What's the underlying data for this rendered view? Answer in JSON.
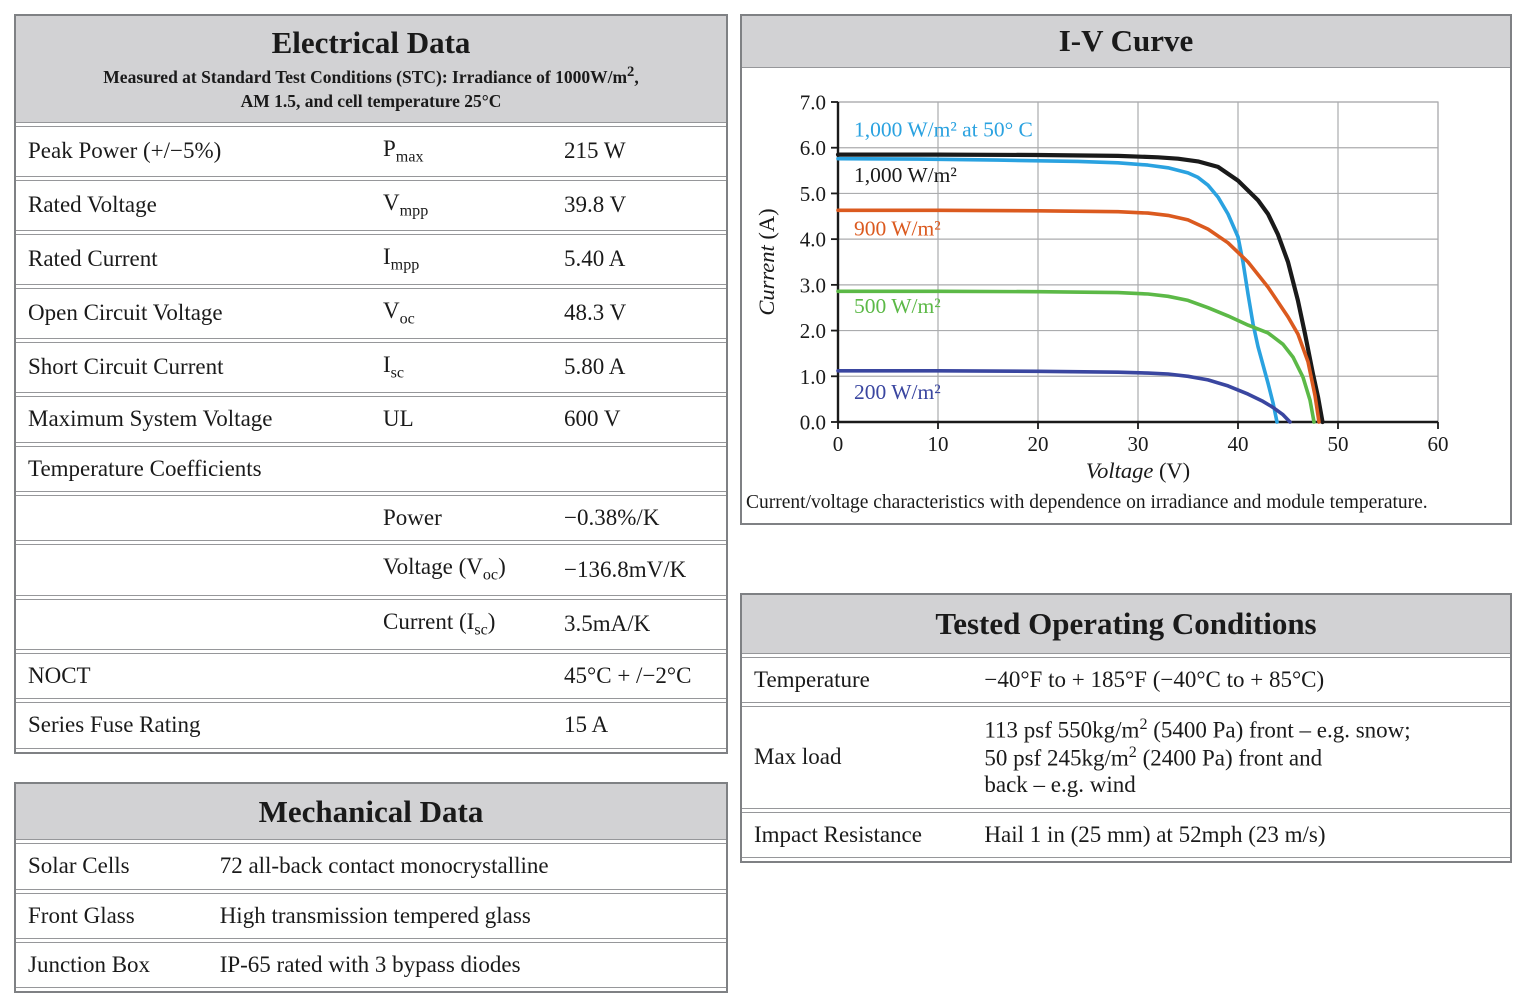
{
  "electrical": {
    "title": "Electrical Data",
    "subtitle_line1": "Measured at Standard Test Conditions (STC): Irradiance of 1000W/m<sup>2</sup>,",
    "subtitle_line2": "AM 1.5, and cell temperature 25°C",
    "rows": [
      {
        "label": "Peak Power (+/−5%)",
        "symbol": "P<sub>max</sub>",
        "value": "215 W"
      },
      {
        "label": "Rated Voltage",
        "symbol": "V<sub>mpp</sub>",
        "value": "39.8 V"
      },
      {
        "label": "Rated Current",
        "symbol": "I<sub>mpp</sub>",
        "value": "5.40 A"
      },
      {
        "label": "Open Circuit Voltage",
        "symbol": "V<sub>oc</sub>",
        "value": "48.3 V"
      },
      {
        "label": "Short Circuit Current",
        "symbol": "I<sub>sc</sub>",
        "value": "5.80 A"
      },
      {
        "label": "Maximum System Voltage",
        "symbol": "UL",
        "value": "600 V"
      },
      {
        "label": "Temperature Coefficients",
        "symbol": "",
        "value": ""
      },
      {
        "label": "",
        "symbol": "Power",
        "value": "−0.38%/K"
      },
      {
        "label": "",
        "symbol": "Voltage (V<sub>oc</sub>)",
        "value": "−136.8mV/K"
      },
      {
        "label": "",
        "symbol": "Current (I<sub>sc</sub>)",
        "value": "3.5mA/K"
      },
      {
        "label": "NOCT",
        "symbol": "",
        "value": "45°C + /−2°C"
      },
      {
        "label": "Series Fuse Rating",
        "symbol": "",
        "value": "15 A"
      }
    ]
  },
  "mechanical": {
    "title": "Mechanical Data",
    "rows": [
      {
        "label": "Solar Cells",
        "value": "72 all-back contact monocrystalline"
      },
      {
        "label": "Front Glass",
        "value": "High transmission tempered glass"
      },
      {
        "label": "Junction Box",
        "value": "IP-65 rated with 3 bypass diodes"
      }
    ]
  },
  "tested": {
    "title": "Tested Operating Conditions",
    "rows": [
      {
        "label": "Temperature",
        "value": "−40°F to + 185°F (−40°C to + 85°C)"
      },
      {
        "label": "Max load",
        "value": "113 psf 550kg/m<sup>2</sup> (5400 Pa) front – e.g. snow;<br>50 psf 245kg/m<sup>2</sup> (2400 Pa) front and<br>back – e.g. wind"
      },
      {
        "label": "Impact Resistance",
        "value": "Hail 1 in (25 mm) at 52mph (23 m/s)"
      }
    ]
  },
  "chart_data": {
    "type": "line",
    "title": "I-V Curve",
    "caption": "Current/voltage characteristics with dependence on irradiance and module temperature.",
    "xlabel": "Voltage",
    "xunit": "(V)",
    "ylabel": "Current",
    "yunit": "(A)",
    "xlim": [
      0,
      60
    ],
    "ylim": [
      0,
      7
    ],
    "xticks": [
      0,
      10,
      20,
      30,
      40,
      50,
      60
    ],
    "yticks": [
      0,
      1,
      2,
      3,
      4,
      5,
      6,
      7
    ],
    "grid": true,
    "grid_color": "#abacae",
    "axis_color": "#1a1a1a",
    "legend_position": "inline-left",
    "series": [
      {
        "name": "1,000 W/m²",
        "irradiance_w_m2": 1000,
        "color": "#1a1a1a",
        "width": 4.2,
        "label_pos": [
          1.6,
          5.25
        ],
        "points": [
          [
            0,
            5.85
          ],
          [
            10,
            5.85
          ],
          [
            20,
            5.84
          ],
          [
            28,
            5.82
          ],
          [
            32,
            5.79
          ],
          [
            34,
            5.76
          ],
          [
            36,
            5.7
          ],
          [
            38,
            5.58
          ],
          [
            40,
            5.28
          ],
          [
            42,
            4.85
          ],
          [
            43,
            4.55
          ],
          [
            44,
            4.1
          ],
          [
            45,
            3.5
          ],
          [
            46,
            2.65
          ],
          [
            46.7,
            1.93
          ],
          [
            47.5,
            1.05
          ],
          [
            48,
            0.55
          ],
          [
            48.45,
            0
          ]
        ]
      },
      {
        "name": "1,000 W/m² at 50° C",
        "irradiance_w_m2": 1000,
        "temperature_c": 50,
        "color": "#2aa2e0",
        "width": 3.6,
        "label_pos": [
          1.6,
          6.25
        ],
        "points": [
          [
            0,
            5.76
          ],
          [
            8,
            5.75
          ],
          [
            16,
            5.73
          ],
          [
            24,
            5.7
          ],
          [
            28,
            5.67
          ],
          [
            31,
            5.62
          ],
          [
            33,
            5.56
          ],
          [
            35,
            5.45
          ],
          [
            36,
            5.35
          ],
          [
            37,
            5.18
          ],
          [
            38,
            4.92
          ],
          [
            39,
            4.55
          ],
          [
            40,
            4.05
          ],
          [
            40.5,
            3.5
          ],
          [
            41,
            2.8
          ],
          [
            41.5,
            2.15
          ],
          [
            42,
            1.65
          ],
          [
            42.5,
            1.25
          ],
          [
            43,
            0.85
          ],
          [
            43.5,
            0.42
          ],
          [
            43.9,
            0
          ]
        ]
      },
      {
        "name": "900 W/m²",
        "irradiance_w_m2": 900,
        "color": "#db5a1f",
        "width": 3.6,
        "label_pos": [
          1.6,
          4.08
        ],
        "points": [
          [
            0,
            4.63
          ],
          [
            10,
            4.63
          ],
          [
            20,
            4.62
          ],
          [
            28,
            4.6
          ],
          [
            31,
            4.57
          ],
          [
            33,
            4.52
          ],
          [
            35,
            4.42
          ],
          [
            37,
            4.22
          ],
          [
            39,
            3.92
          ],
          [
            41,
            3.5
          ],
          [
            43,
            2.95
          ],
          [
            45,
            2.3
          ],
          [
            46,
            1.92
          ],
          [
            47,
            1.32
          ],
          [
            47.7,
            0.58
          ],
          [
            48.1,
            0
          ]
        ]
      },
      {
        "name": "500 W/m²",
        "irradiance_w_m2": 500,
        "color": "#5cb947",
        "width": 3.6,
        "label_pos": [
          1.6,
          2.38
        ],
        "points": [
          [
            0,
            2.86
          ],
          [
            10,
            2.86
          ],
          [
            20,
            2.85
          ],
          [
            28,
            2.83
          ],
          [
            31,
            2.8
          ],
          [
            33,
            2.75
          ],
          [
            35,
            2.66
          ],
          [
            37,
            2.5
          ],
          [
            39,
            2.32
          ],
          [
            41,
            2.12
          ],
          [
            43,
            1.95
          ],
          [
            44.5,
            1.7
          ],
          [
            45.5,
            1.42
          ],
          [
            46.5,
            0.98
          ],
          [
            47.2,
            0.48
          ],
          [
            47.6,
            0
          ]
        ]
      },
      {
        "name": "200 W/m²",
        "irradiance_w_m2": 200,
        "color": "#3a46a0",
        "width": 3.6,
        "label_pos": [
          1.6,
          0.5
        ],
        "points": [
          [
            0,
            1.12
          ],
          [
            10,
            1.12
          ],
          [
            20,
            1.11
          ],
          [
            28,
            1.09
          ],
          [
            31,
            1.07
          ],
          [
            33,
            1.05
          ],
          [
            35,
            1.0
          ],
          [
            37,
            0.92
          ],
          [
            39,
            0.79
          ],
          [
            41,
            0.61
          ],
          [
            42.5,
            0.45
          ],
          [
            43.5,
            0.32
          ],
          [
            44.5,
            0.16
          ],
          [
            45.2,
            0
          ]
        ]
      }
    ]
  }
}
